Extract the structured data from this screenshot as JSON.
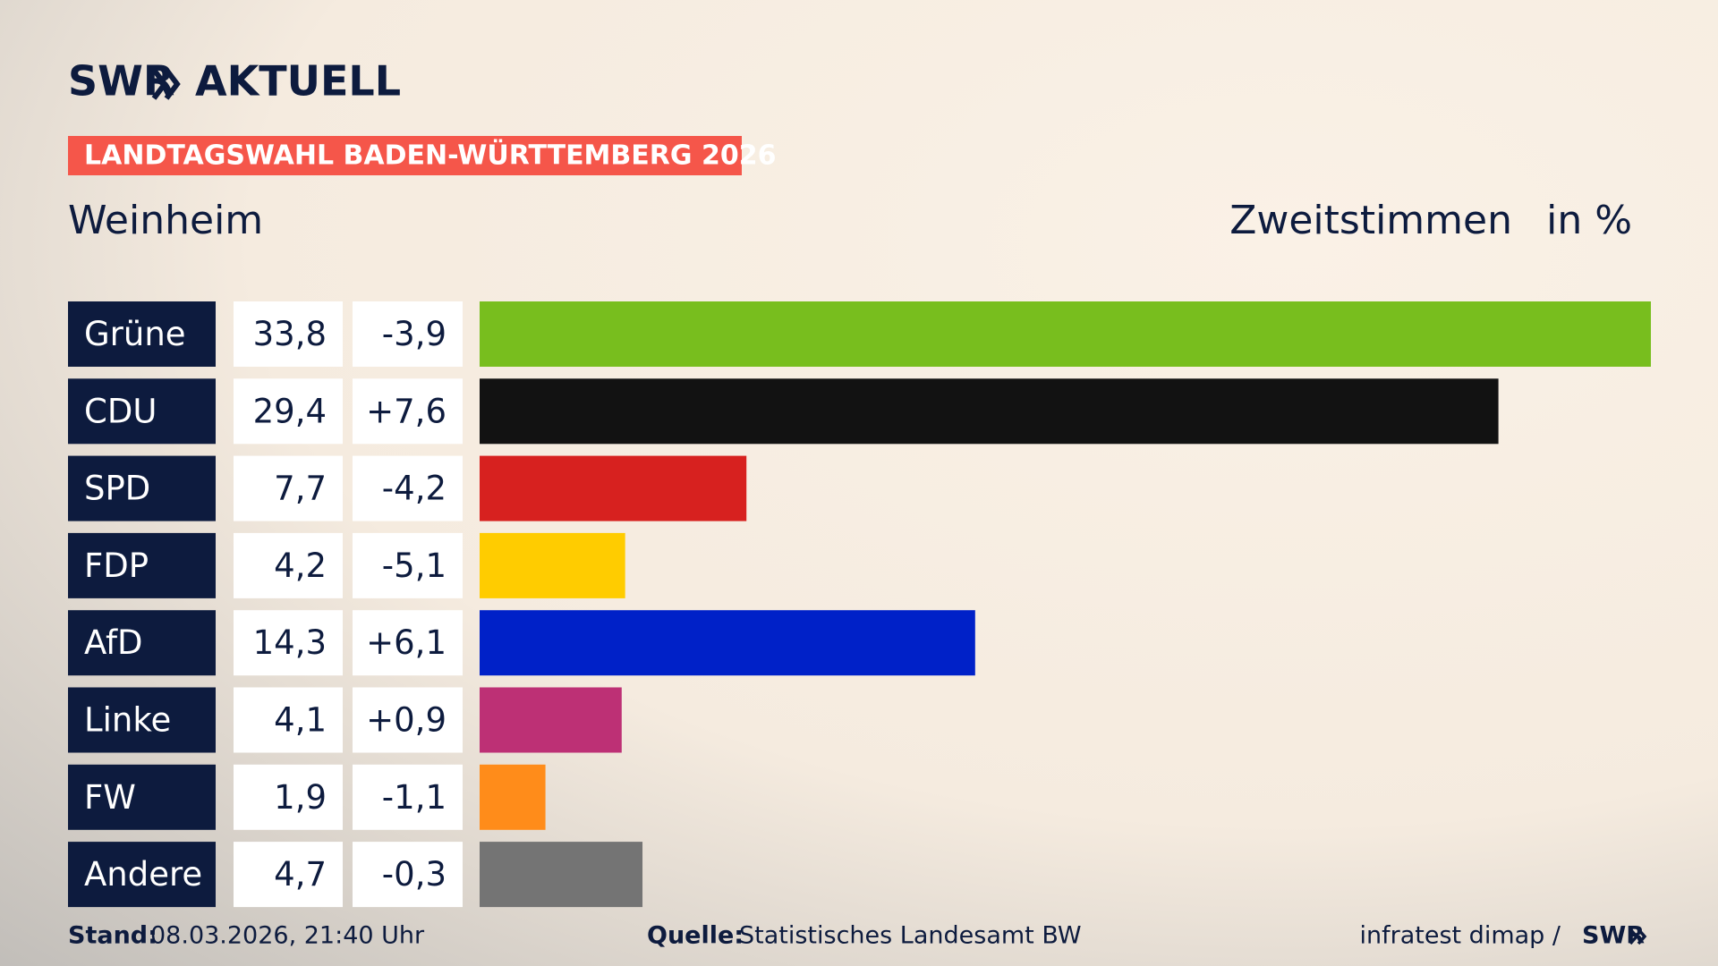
{
  "chart_data": {
    "type": "bar",
    "logo": "SWR",
    "logo_title": "AKTUELL",
    "banner": "LANDTAGSWAHL BADEN-WÜRTTEMBERG 2026",
    "title": "Weinheim",
    "subtitle": "Zweitstimmen",
    "unit": "in %",
    "categories": [
      "Grüne",
      "CDU",
      "SPD",
      "FDP",
      "AfD",
      "Linke",
      "FW",
      "Andere"
    ],
    "values": [
      33.8,
      29.4,
      7.7,
      4.2,
      14.3,
      4.1,
      1.9,
      4.7
    ],
    "value_labels": [
      "33,8",
      "29,4",
      "7,7",
      "4,2",
      "14,3",
      "4,1",
      "1,9",
      "4,7"
    ],
    "changes": [
      -3.9,
      7.6,
      -4.2,
      -5.1,
      6.1,
      0.9,
      -1.1,
      -0.3
    ],
    "change_labels": [
      "-3,9",
      "+7,6",
      "-4,2",
      "-5,1",
      "+6,1",
      "+0,9",
      "-1,1",
      "-0,3"
    ],
    "colors": [
      "#78be1e",
      "#121212",
      "#d7211f",
      "#ffcc00",
      "#0021c8",
      "#bd3075",
      "#ff8c1a",
      "#747474"
    ],
    "xlim": [
      0,
      33.8
    ],
    "footer": {
      "stand_label": "Stand:",
      "stand": "08.03.2026, 21:40 Uhr",
      "source_label": "Quelle:",
      "source": "Statistisches Landesamt BW",
      "credit": "infratest dimap /",
      "credit_logo": "SWR"
    }
  }
}
